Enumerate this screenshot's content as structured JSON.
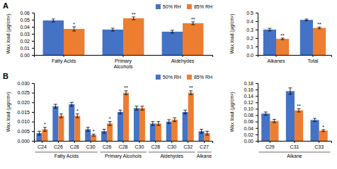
{
  "chart_data": [
    {
      "type": "bar",
      "title": "A",
      "categories": [
        "Fatty Acids",
        "Primary\nAlcohols",
        "Aldehydes"
      ],
      "series": [
        {
          "name": "50% RH",
          "color": "#4472C4",
          "values": [
            0.049,
            0.036,
            0.033
          ],
          "errors": [
            0.002,
            0.002,
            0.002
          ]
        },
        {
          "name": "85% RH",
          "color": "#ED7D31",
          "values": [
            0.037,
            0.052,
            0.045
          ],
          "errors": [
            0.003,
            0.002,
            0.002
          ],
          "annotations": [
            "*",
            "**",
            "**"
          ]
        }
      ],
      "ylabel": "Wax load (μg/cm²)",
      "ylim": [
        0,
        0.06
      ],
      "yticks": [
        {
          "value": 0,
          "label": "0.00"
        },
        0.01,
        0.02,
        0.03,
        0.04,
        0.05,
        0.06
      ],
      "grid": false,
      "legend": "upper right"
    },
    {
      "type": "bar",
      "categories": [
        "Alkanes",
        "Total"
      ],
      "series": [
        {
          "color": "#4472C4",
          "values": [
            0.3,
            0.415
          ],
          "errors": [
            0.015,
            0.01
          ]
        },
        {
          "color": "#ED7D31",
          "values": [
            0.19,
            0.32
          ],
          "errors": [
            0.01,
            0.01
          ],
          "annotations": [
            "**",
            "**"
          ]
        }
      ],
      "ylabel": "Wax load (μg/cm²)",
      "ylim": [
        0,
        0.5
      ],
      "yticks": [
        {
          "value": 0,
          "label": "0.0"
        },
        0.1,
        0.2,
        0.3,
        0.4,
        0.5
      ],
      "grid": false
    },
    {
      "type": "bar",
      "title": "B",
      "categories": [
        "C24",
        "C26",
        "C28",
        "C30",
        "C26",
        "C28",
        "C30",
        "C28",
        "C30",
        "C32",
        "C27"
      ],
      "groups": [
        {
          "label": "Fatty Acids",
          "span": [
            0,
            3
          ]
        },
        {
          "label": "Primary Alcohols",
          "span": [
            4,
            6
          ]
        },
        {
          "label": "Aldehydes",
          "span": [
            7,
            9
          ]
        },
        {
          "label": "Alkane",
          "span": [
            10,
            10
          ]
        }
      ],
      "series": [
        {
          "name": "50% RH",
          "color": "#4472C4",
          "values": [
            0.004,
            0.018,
            0.019,
            0.006,
            0.005,
            0.015,
            0.017,
            0.009,
            0.01,
            0.015,
            0.005
          ],
          "errors": [
            0.001,
            0.001,
            0.001,
            0.001,
            0.001,
            0.001,
            0.001,
            0.001,
            0.001,
            0.001,
            0.001
          ]
        },
        {
          "name": "85% RH",
          "color": "#ED7D31",
          "values": [
            0.006,
            0.013,
            0.013,
            0.003,
            0.009,
            0.025,
            0.017,
            0.009,
            0.011,
            0.025,
            0.004
          ],
          "errors": [
            0.001,
            0.001,
            0.001,
            0.0005,
            0.001,
            0.001,
            0.001,
            0.001,
            0.001,
            0.001,
            0.001
          ],
          "annotations": [
            "*",
            null,
            "*",
            "*",
            "*",
            "**",
            null,
            null,
            null,
            "**",
            null
          ]
        }
      ],
      "ylabel": "Wax load (μg/cm²)",
      "ylim": [
        0,
        0.03
      ],
      "yticks": [
        {
          "value": 0,
          "label": "0.000"
        },
        0.005,
        {
          "value": 0.01,
          "label": "0.010"
        },
        0.015,
        {
          "value": 0.02,
          "label": "0.020"
        },
        0.025,
        {
          "value": 0.03,
          "label": "0.030"
        }
      ],
      "grid": false,
      "legend": "upper right"
    },
    {
      "type": "bar",
      "categories": [
        "C29",
        "C31",
        "C33"
      ],
      "groups": [
        {
          "label": "Alkane",
          "span": [
            0,
            2
          ]
        }
      ],
      "series": [
        {
          "color": "#4472C4",
          "values": [
            0.085,
            0.155,
            0.065
          ],
          "errors": [
            0.005,
            0.01,
            0.005
          ]
        },
        {
          "color": "#ED7D31",
          "values": [
            0.062,
            0.095,
            0.032
          ],
          "errors": [
            0.005,
            0.005,
            0.003
          ],
          "annotations": [
            null,
            "**",
            "*"
          ]
        }
      ],
      "ylabel": "Wax load (μg/cm²)",
      "ylim": [
        0,
        0.18
      ],
      "yticks": [
        {
          "value": 0,
          "label": "0.00"
        },
        0.02,
        0.04,
        0.06,
        0.08,
        {
          "value": 0.1,
          "label": "0.10"
        },
        0.12,
        0.14,
        0.16,
        0.18
      ],
      "grid": false
    }
  ]
}
